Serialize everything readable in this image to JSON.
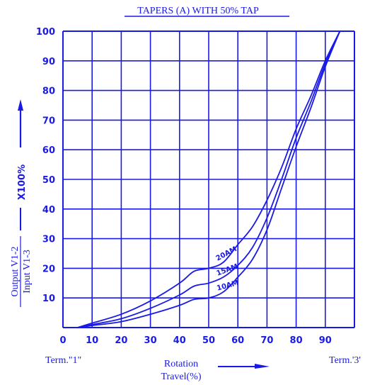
{
  "colors": {
    "ink": "#1a1ae6",
    "background": "#ffffff"
  },
  "chart_data": {
    "type": "line",
    "title": "TAPERS (A) WITH  50%  TAP",
    "xlabel": "Rotation Travel(%)",
    "xlabel_lines": [
      "Rotation",
      "Travel(%)"
    ],
    "ylabel": {
      "numerator": "Output V1-2",
      "denominator": "Input V1-3",
      "multiplier": "X100%"
    },
    "x_end_labels": {
      "left": "Term.\"1\"",
      "right": "Term.'3'"
    },
    "xlim": [
      0,
      100
    ],
    "ylim": [
      0,
      100
    ],
    "xticks": [
      0,
      10,
      20,
      30,
      40,
      50,
      60,
      70,
      80,
      90
    ],
    "yticks": [
      10,
      20,
      30,
      40,
      50,
      60,
      70,
      80,
      90,
      100
    ],
    "grid": true,
    "series": [
      {
        "name": "20AM",
        "x": [
          5,
          10,
          20,
          30,
          40,
          45,
          50,
          55,
          60,
          65,
          70,
          75,
          80,
          85,
          90,
          95
        ],
        "y": [
          0,
          1.5,
          4.5,
          9,
          15,
          19,
          20,
          22,
          28,
          34,
          43,
          54,
          67,
          78,
          90,
          100
        ]
      },
      {
        "name": "15AM",
        "x": [
          5,
          10,
          20,
          30,
          40,
          45,
          50,
          55,
          60,
          65,
          70,
          75,
          80,
          85,
          90,
          95
        ],
        "y": [
          0,
          1,
          3,
          6.5,
          11,
          14,
          15,
          17,
          21,
          27,
          37,
          50,
          64,
          76,
          89,
          100
        ]
      },
      {
        "name": "10AM",
        "x": [
          5,
          10,
          20,
          30,
          40,
          45,
          50,
          55,
          60,
          65,
          70,
          75,
          80,
          85,
          90,
          95
        ],
        "y": [
          0,
          0.7,
          2,
          4.5,
          7.5,
          9.5,
          10,
          12,
          17,
          23,
          33,
          47,
          61,
          74,
          88,
          100
        ]
      }
    ]
  }
}
